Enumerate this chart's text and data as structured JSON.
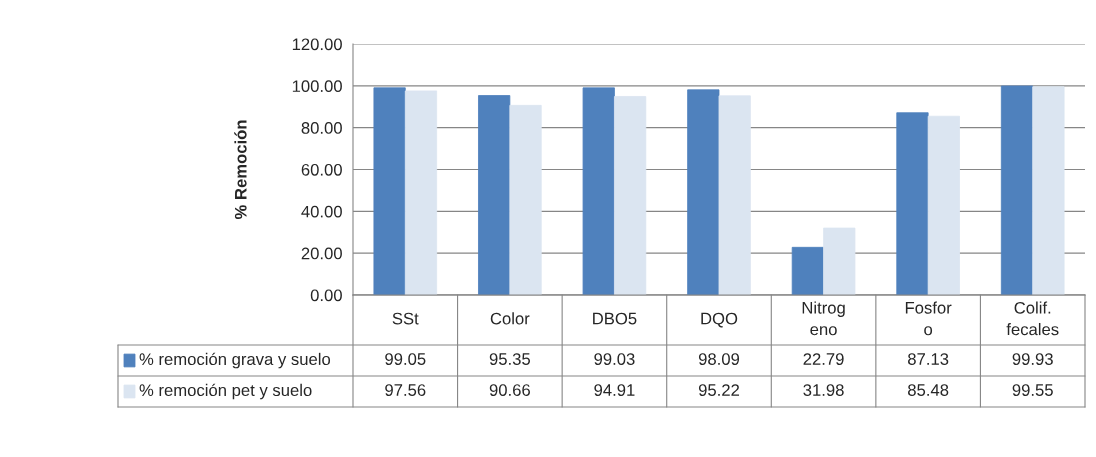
{
  "chart_data": {
    "type": "bar",
    "ylabel": "% Remoción",
    "categories": [
      "SSt",
      "Color",
      "DBO5",
      "DQO",
      "Nitrog\neno",
      "Fosfor\no",
      "Colif.\nfecales"
    ],
    "series": [
      {
        "name": "% remoción grava y suelo",
        "color": "#4f81bd",
        "values": [
          99.05,
          95.35,
          99.03,
          98.09,
          22.79,
          87.13,
          99.93
        ]
      },
      {
        "name": "% remoción pet y suelo",
        "color": "#dbe5f1",
        "values": [
          97.56,
          90.66,
          94.91,
          95.22,
          31.98,
          85.48,
          99.55
        ]
      }
    ],
    "ylim": [
      0,
      120
    ],
    "yticks": [
      {
        "value": 0,
        "label": "0.00"
      },
      {
        "value": 20,
        "label": "20.00"
      },
      {
        "value": 40,
        "label": "40.00"
      },
      {
        "value": 60,
        "label": "60.00"
      },
      {
        "value": 80,
        "label": "80.00"
      },
      {
        "value": 100,
        "label": "100.00"
      },
      {
        "value": 120,
        "label": "120.00"
      }
    ],
    "grid": "y",
    "data_labels": true,
    "legend": "bottom"
  }
}
